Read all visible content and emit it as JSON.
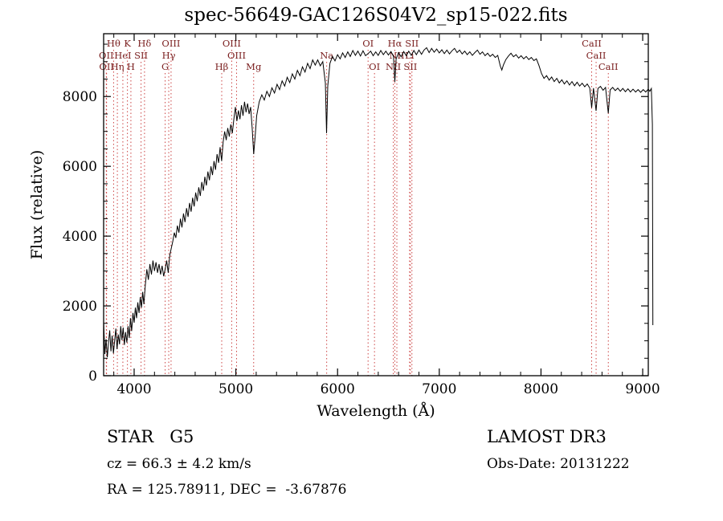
{
  "chart_data": {
    "type": "line",
    "title": "spec-56649-GAC126S04V2_sp15-022.fits",
    "xlabel": "Wavelength (Å)",
    "ylabel": "Flux (relative)",
    "xlim": [
      3700,
      9055
    ],
    "ylim": [
      0,
      9800
    ],
    "x_ticks": [
      4000,
      5000,
      6000,
      7000,
      8000,
      9000
    ],
    "y_ticks": [
      0,
      2000,
      4000,
      6000,
      8000
    ],
    "x_minor_step": 200,
    "y_minor_step": 500,
    "grid": false,
    "legend": "none",
    "colors": {
      "spectrum": "#000000",
      "line_marker": "#cc4444",
      "line_label": "#7b2020",
      "axis": "#000000"
    },
    "series": [
      {
        "name": "spectrum-flux",
        "points": [
          [
            3700,
            1550
          ],
          [
            3712,
            620
          ],
          [
            3724,
            1050
          ],
          [
            3736,
            530
          ],
          [
            3748,
            950
          ],
          [
            3760,
            1300
          ],
          [
            3772,
            700
          ],
          [
            3784,
            1150
          ],
          [
            3796,
            640
          ],
          [
            3808,
            1000
          ],
          [
            3820,
            1350
          ],
          [
            3832,
            760
          ],
          [
            3844,
            1180
          ],
          [
            3856,
            900
          ],
          [
            3868,
            1420
          ],
          [
            3880,
            1020
          ],
          [
            3892,
            1380
          ],
          [
            3904,
            880
          ],
          [
            3916,
            1250
          ],
          [
            3928,
            950
          ],
          [
            3940,
            1420
          ],
          [
            3952,
            1080
          ],
          [
            3964,
            1650
          ],
          [
            3976,
            1280
          ],
          [
            3988,
            1800
          ],
          [
            4000,
            1520
          ],
          [
            4012,
            1950
          ],
          [
            4024,
            1650
          ],
          [
            4036,
            2100
          ],
          [
            4048,
            1800
          ],
          [
            4060,
            2250
          ],
          [
            4072,
            1950
          ],
          [
            4084,
            2400
          ],
          [
            4096,
            2050
          ],
          [
            4110,
            2600
          ],
          [
            4125,
            3050
          ],
          [
            4140,
            2750
          ],
          [
            4155,
            3200
          ],
          [
            4170,
            2900
          ],
          [
            4185,
            3300
          ],
          [
            4200,
            3000
          ],
          [
            4215,
            3250
          ],
          [
            4230,
            2950
          ],
          [
            4245,
            3200
          ],
          [
            4260,
            2900
          ],
          [
            4275,
            3150
          ],
          [
            4290,
            2850
          ],
          [
            4305,
            3050
          ],
          [
            4320,
            3300
          ],
          [
            4335,
            2950
          ],
          [
            4350,
            3450
          ],
          [
            4365,
            3650
          ],
          [
            4380,
            3850
          ],
          [
            4395,
            4100
          ],
          [
            4410,
            3950
          ],
          [
            4425,
            4300
          ],
          [
            4440,
            4100
          ],
          [
            4455,
            4500
          ],
          [
            4470,
            4250
          ],
          [
            4485,
            4650
          ],
          [
            4500,
            4400
          ],
          [
            4515,
            4800
          ],
          [
            4530,
            4550
          ],
          [
            4545,
            4950
          ],
          [
            4560,
            4700
          ],
          [
            4575,
            5100
          ],
          [
            4590,
            4850
          ],
          [
            4605,
            5250
          ],
          [
            4620,
            5000
          ],
          [
            4635,
            5400
          ],
          [
            4650,
            5150
          ],
          [
            4665,
            5550
          ],
          [
            4680,
            5300
          ],
          [
            4695,
            5700
          ],
          [
            4710,
            5450
          ],
          [
            4725,
            5850
          ],
          [
            4740,
            5600
          ],
          [
            4755,
            6000
          ],
          [
            4770,
            5750
          ],
          [
            4785,
            6150
          ],
          [
            4800,
            5900
          ],
          [
            4815,
            6350
          ],
          [
            4830,
            6100
          ],
          [
            4845,
            6550
          ],
          [
            4860,
            6150
          ],
          [
            4875,
            6700
          ],
          [
            4890,
            7000
          ],
          [
            4905,
            6750
          ],
          [
            4920,
            7100
          ],
          [
            4935,
            6850
          ],
          [
            4950,
            7200
          ],
          [
            4965,
            6950
          ],
          [
            4980,
            7350
          ],
          [
            4995,
            7700
          ],
          [
            5010,
            7300
          ],
          [
            5025,
            7600
          ],
          [
            5040,
            7350
          ],
          [
            5055,
            7750
          ],
          [
            5070,
            7450
          ],
          [
            5085,
            7850
          ],
          [
            5100,
            7550
          ],
          [
            5115,
            7800
          ],
          [
            5130,
            7500
          ],
          [
            5145,
            7700
          ],
          [
            5160,
            7100
          ],
          [
            5175,
            6350
          ],
          [
            5190,
            6850
          ],
          [
            5205,
            7450
          ],
          [
            5230,
            7850
          ],
          [
            5255,
            8050
          ],
          [
            5280,
            7900
          ],
          [
            5305,
            8150
          ],
          [
            5330,
            8000
          ],
          [
            5355,
            8250
          ],
          [
            5380,
            8100
          ],
          [
            5405,
            8350
          ],
          [
            5430,
            8200
          ],
          [
            5455,
            8450
          ],
          [
            5480,
            8300
          ],
          [
            5505,
            8550
          ],
          [
            5530,
            8400
          ],
          [
            5555,
            8650
          ],
          [
            5580,
            8500
          ],
          [
            5605,
            8750
          ],
          [
            5630,
            8600
          ],
          [
            5655,
            8850
          ],
          [
            5680,
            8700
          ],
          [
            5705,
            8950
          ],
          [
            5730,
            8800
          ],
          [
            5755,
            9050
          ],
          [
            5780,
            8900
          ],
          [
            5805,
            9050
          ],
          [
            5830,
            8880
          ],
          [
            5855,
            9000
          ],
          [
            5880,
            8400
          ],
          [
            5892,
            6950
          ],
          [
            5904,
            8300
          ],
          [
            5925,
            8950
          ],
          [
            5950,
            9150
          ],
          [
            5975,
            9020
          ],
          [
            6000,
            9200
          ],
          [
            6025,
            9080
          ],
          [
            6050,
            9250
          ],
          [
            6075,
            9120
          ],
          [
            6100,
            9280
          ],
          [
            6125,
            9150
          ],
          [
            6150,
            9320
          ],
          [
            6175,
            9180
          ],
          [
            6200,
            9300
          ],
          [
            6225,
            9160
          ],
          [
            6250,
            9310
          ],
          [
            6275,
            9170
          ],
          [
            6300,
            9230
          ],
          [
            6325,
            9300
          ],
          [
            6350,
            9170
          ],
          [
            6375,
            9280
          ],
          [
            6400,
            9180
          ],
          [
            6425,
            9320
          ],
          [
            6450,
            9200
          ],
          [
            6475,
            9300
          ],
          [
            6500,
            9190
          ],
          [
            6525,
            9290
          ],
          [
            6550,
            9150
          ],
          [
            6563,
            8420
          ],
          [
            6576,
            9080
          ],
          [
            6600,
            9260
          ],
          [
            6625,
            9140
          ],
          [
            6650,
            9290
          ],
          [
            6675,
            9170
          ],
          [
            6700,
            9300
          ],
          [
            6725,
            9180
          ],
          [
            6750,
            9320
          ],
          [
            6775,
            9200
          ],
          [
            6800,
            9330
          ],
          [
            6825,
            9210
          ],
          [
            6850,
            9330
          ],
          [
            6875,
            9400
          ],
          [
            6900,
            9260
          ],
          [
            6925,
            9380
          ],
          [
            6950,
            9270
          ],
          [
            6975,
            9360
          ],
          [
            7000,
            9250
          ],
          [
            7025,
            9340
          ],
          [
            7050,
            9230
          ],
          [
            7075,
            9330
          ],
          [
            7100,
            9220
          ],
          [
            7125,
            9310
          ],
          [
            7150,
            9380
          ],
          [
            7175,
            9260
          ],
          [
            7200,
            9330
          ],
          [
            7225,
            9220
          ],
          [
            7250,
            9300
          ],
          [
            7275,
            9200
          ],
          [
            7300,
            9280
          ],
          [
            7325,
            9180
          ],
          [
            7350,
            9260
          ],
          [
            7375,
            9330
          ],
          [
            7400,
            9210
          ],
          [
            7425,
            9280
          ],
          [
            7450,
            9170
          ],
          [
            7475,
            9240
          ],
          [
            7500,
            9150
          ],
          [
            7525,
            9210
          ],
          [
            7550,
            9120
          ],
          [
            7575,
            9180
          ],
          [
            7600,
            8870
          ],
          [
            7615,
            8760
          ],
          [
            7630,
            8900
          ],
          [
            7655,
            9060
          ],
          [
            7680,
            9160
          ],
          [
            7705,
            9240
          ],
          [
            7730,
            9140
          ],
          [
            7755,
            9200
          ],
          [
            7780,
            9100
          ],
          [
            7805,
            9170
          ],
          [
            7830,
            9080
          ],
          [
            7855,
            9150
          ],
          [
            7880,
            9060
          ],
          [
            7905,
            9120
          ],
          [
            7930,
            9030
          ],
          [
            7955,
            9080
          ],
          [
            7980,
            8890
          ],
          [
            8005,
            8660
          ],
          [
            8030,
            8520
          ],
          [
            8055,
            8600
          ],
          [
            8080,
            8470
          ],
          [
            8105,
            8560
          ],
          [
            8130,
            8430
          ],
          [
            8155,
            8520
          ],
          [
            8180,
            8390
          ],
          [
            8205,
            8480
          ],
          [
            8230,
            8360
          ],
          [
            8255,
            8450
          ],
          [
            8280,
            8330
          ],
          [
            8305,
            8430
          ],
          [
            8330,
            8310
          ],
          [
            8355,
            8410
          ],
          [
            8380,
            8300
          ],
          [
            8405,
            8380
          ],
          [
            8430,
            8280
          ],
          [
            8455,
            8360
          ],
          [
            8480,
            8240
          ],
          [
            8498,
            7680
          ],
          [
            8516,
            8240
          ],
          [
            8542,
            7590
          ],
          [
            8560,
            8230
          ],
          [
            8585,
            8290
          ],
          [
            8610,
            8180
          ],
          [
            8635,
            8260
          ],
          [
            8662,
            7520
          ],
          [
            8680,
            8190
          ],
          [
            8705,
            8260
          ],
          [
            8730,
            8170
          ],
          [
            8755,
            8240
          ],
          [
            8780,
            8150
          ],
          [
            8805,
            8230
          ],
          [
            8830,
            8140
          ],
          [
            8855,
            8220
          ],
          [
            8880,
            8130
          ],
          [
            8905,
            8210
          ],
          [
            8930,
            8130
          ],
          [
            8955,
            8200
          ],
          [
            8980,
            8120
          ],
          [
            9005,
            8200
          ],
          [
            9030,
            8130
          ],
          [
            9055,
            8210
          ],
          [
            9070,
            8150
          ],
          [
            9085,
            8230
          ],
          [
            9095,
            7200
          ],
          [
            9100,
            1450
          ]
        ]
      }
    ],
    "spectral_lines": [
      {
        "label": "Hθ",
        "wavelength": 3798,
        "row": 0
      },
      {
        "label": "K",
        "wavelength": 3934,
        "row": 0
      },
      {
        "label": "Hδ",
        "wavelength": 4102,
        "row": 0
      },
      {
        "label": "OII",
        "wavelength": 3726,
        "row": 1
      },
      {
        "label": "HeI",
        "wavelength": 3889,
        "row": 1
      },
      {
        "label": "SII",
        "wavelength": 4068,
        "row": 1
      },
      {
        "label": "OII",
        "wavelength": 3729,
        "row": 2
      },
      {
        "label": "Hη",
        "wavelength": 3835,
        "row": 2
      },
      {
        "label": "H",
        "wavelength": 3968,
        "row": 2
      },
      {
        "label": "OIII",
        "wavelength": 4363,
        "row": 0
      },
      {
        "label": "Hγ",
        "wavelength": 4340,
        "row": 1
      },
      {
        "label": "G",
        "wavelength": 4305,
        "row": 2
      },
      {
        "label": "OIII",
        "wavelength": 4959,
        "row": 0
      },
      {
        "label": "OIII",
        "wavelength": 5007,
        "row": 1
      },
      {
        "label": "Hβ",
        "wavelength": 4861,
        "row": 2
      },
      {
        "label": "Mg",
        "wavelength": 5175,
        "row": 2
      },
      {
        "label": "Na",
        "wavelength": 5893,
        "row": 1
      },
      {
        "label": "OI",
        "wavelength": 6300,
        "row": 0
      },
      {
        "label": "Hα",
        "wavelength": 6563,
        "row": 0
      },
      {
        "label": "SII",
        "wavelength": 6731,
        "row": 0
      },
      {
        "label": "NII",
        "wavelength": 6583,
        "row": 1
      },
      {
        "label": "Li",
        "wavelength": 6708,
        "row": 1
      },
      {
        "label": "OI",
        "wavelength": 6363,
        "row": 2
      },
      {
        "label": "NII",
        "wavelength": 6548,
        "row": 2
      },
      {
        "label": "SII",
        "wavelength": 6716,
        "row": 2
      },
      {
        "label": "CaII",
        "wavelength": 8498,
        "row": 0
      },
      {
        "label": "CaII",
        "wavelength": 8542,
        "row": 1
      },
      {
        "label": "CaII",
        "wavelength": 8662,
        "row": 2
      }
    ]
  },
  "annotations": {
    "object_type": "STAR   G5",
    "survey": "LAMOST DR3",
    "cz": "cz = 66.3 ± 4.2 km/s",
    "obs_date": "Obs-Date: 20131222",
    "coords": "RA = 125.78911, DEC =  -3.67876"
  }
}
